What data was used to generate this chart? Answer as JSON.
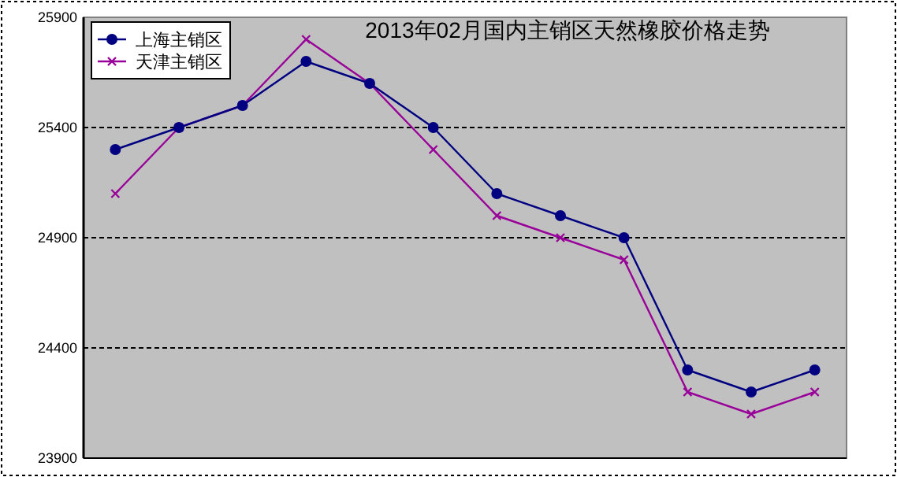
{
  "chart_data": {
    "type": "line",
    "title": "2013年02月国内主销区天然橡胶价格走势",
    "categories": [
      null,
      null,
      null,
      null,
      null,
      null,
      null,
      null,
      null,
      null,
      null,
      null
    ],
    "series": [
      {
        "name": "上海主销区",
        "color": "#000080",
        "marker": "circle",
        "values": [
          25300,
          25400,
          25500,
          25700,
          25600,
          25400,
          25100,
          25000,
          24900,
          24300,
          24200,
          24300
        ]
      },
      {
        "name": "天津主销区",
        "color": "#990099",
        "marker": "cross",
        "values": [
          25100,
          25400,
          25500,
          25800,
          25600,
          25300,
          25000,
          24900,
          24800,
          24200,
          24100,
          24200
        ]
      }
    ],
    "ylim": [
      23900,
      25900
    ],
    "yticks": [
      23900,
      24400,
      24900,
      25400,
      25900
    ],
    "grid": "y",
    "legend": "top left"
  }
}
